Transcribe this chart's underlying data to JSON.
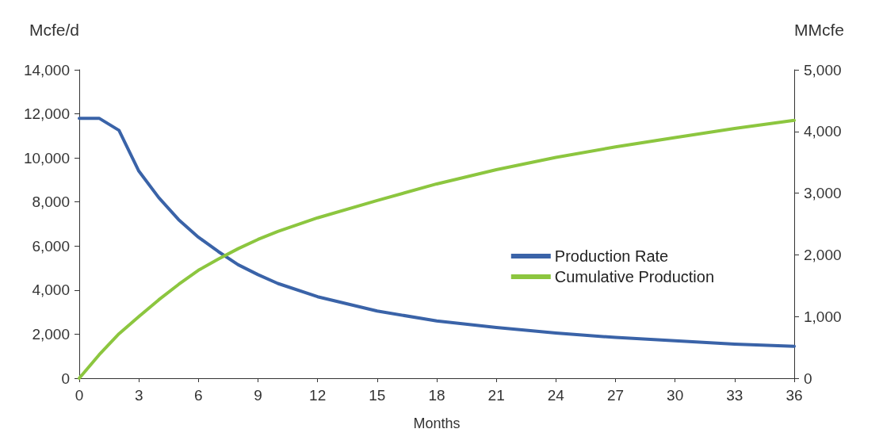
{
  "chart_data": {
    "type": "line",
    "xlabel": "Months",
    "ylabel": "Mcfe/d",
    "y2label": "MMcfe",
    "xlim": [
      0,
      36
    ],
    "xticks": [
      0,
      3,
      6,
      9,
      12,
      15,
      18,
      21,
      24,
      27,
      30,
      33,
      36
    ],
    "ylim": [
      0,
      14000
    ],
    "yticks": [
      0,
      {
        "value": 2000,
        "label": "2,000"
      },
      {
        "value": 4000,
        "label": "4,000"
      },
      {
        "value": 6000,
        "label": "6,000"
      },
      {
        "value": 8000,
        "label": "8,000"
      },
      {
        "value": 10000,
        "label": "10,000"
      },
      {
        "value": 12000,
        "label": "12,000"
      },
      {
        "value": 14000,
        "label": "14,000"
      }
    ],
    "y2lim": [
      0,
      5000
    ],
    "y2ticks": [
      0,
      {
        "value": 1000,
        "label": "1,000"
      },
      {
        "value": 2000,
        "label": "2,000"
      },
      {
        "value": 3000,
        "label": "3,000"
      },
      {
        "value": 4000,
        "label": "4,000"
      },
      {
        "value": 5000,
        "label": "5,000"
      }
    ],
    "x": [
      0,
      1,
      2,
      3,
      4,
      5,
      6,
      7,
      8,
      9,
      10,
      12,
      15,
      18,
      21,
      24,
      27,
      30,
      33,
      36
    ],
    "series": [
      {
        "name": "Production Rate",
        "color": "#3a63a8",
        "values": [
          11800,
          11800,
          11250,
          9400,
          8200,
          7200,
          6400,
          5750,
          5150,
          4700,
          4300,
          3700,
          3050,
          2600,
          2300,
          2050,
          1850,
          1700,
          1550,
          1450
        ]
      },
      {
        "name": "Cumulative Production",
        "color": "#8cc63f",
        "axis": "y2",
        "values": [
          0,
          380,
          720,
          1000,
          1270,
          1520,
          1750,
          1930,
          2100,
          2250,
          2380,
          2600,
          2880,
          3150,
          3380,
          3580,
          3750,
          3900,
          4050,
          4180
        ]
      }
    ],
    "grid": false,
    "legend": "right",
    "marker": "none",
    "line_style": "solid"
  }
}
